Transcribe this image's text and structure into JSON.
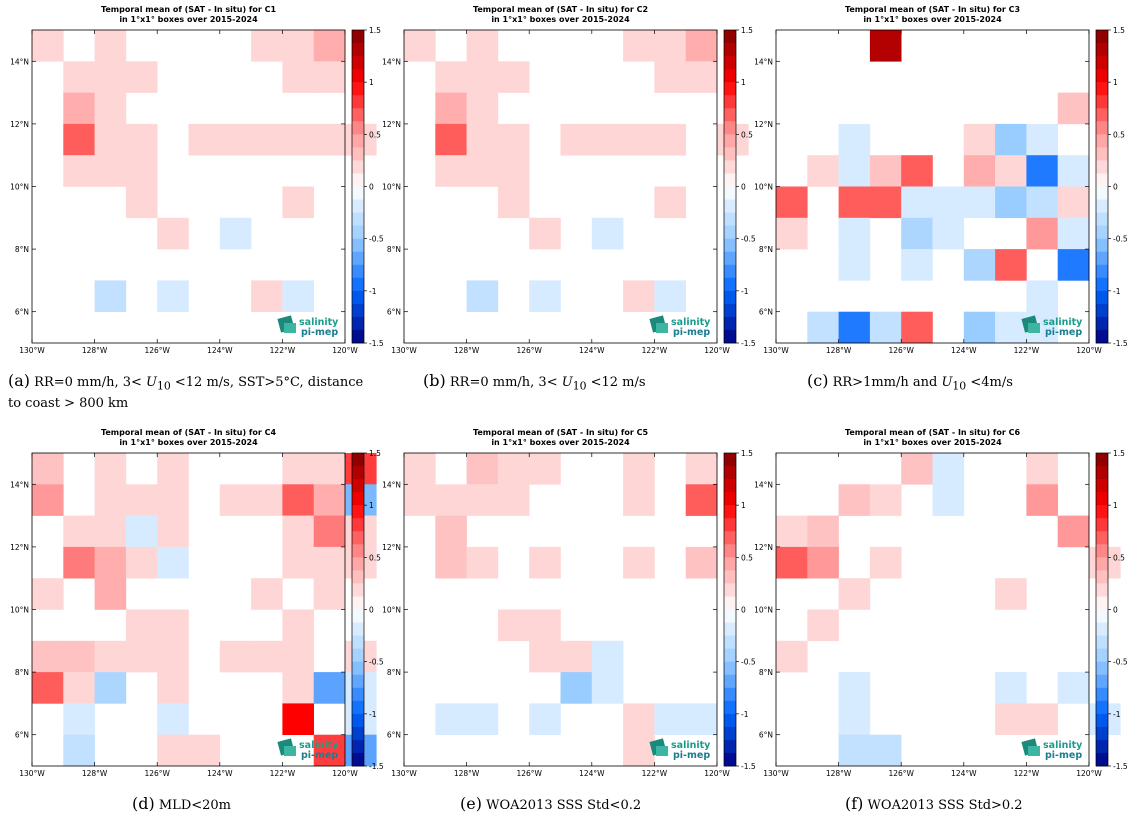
{
  "common": {
    "x_ticks": [
      "130°W",
      "128°W",
      "126°W",
      "124°W",
      "122°W",
      "120°W"
    ],
    "y_ticks": [
      "6°N",
      "8°N",
      "10°N",
      "12°N",
      "14°N"
    ],
    "cbar_ticks": [
      "1.5",
      "1",
      "0.5",
      "0",
      "-0.5",
      "-1",
      "-1.5"
    ],
    "logo_top": "salinity",
    "logo_bottom": "pi-mep"
  },
  "captions": [
    {
      "label": "(a)",
      "text": "RR=0 mm/h, 3< U10 <12 m/s, SST>5°C, distance to coast > 800 km"
    },
    {
      "label": "(b)",
      "text": "RR=0 mm/h, 3< U10 <12 m/s"
    },
    {
      "label": "(c)",
      "text": "RR>1mm/h and U10 <4m/s"
    },
    {
      "label": "(d)",
      "text": "MLD<20m"
    },
    {
      "label": "(e)",
      "text": "WOA2013 SSS Std<0.2"
    },
    {
      "label": "(f)",
      "text": "WOA2013 SSS Std>0.2"
    }
  ],
  "chart_data": [
    {
      "type": "heatmap",
      "title": "Temporal mean of (SAT - In situ) for C1",
      "subtitle": "in 1°x1° boxes over 2015-2024",
      "x_range": [
        -130,
        -120
      ],
      "y_range": [
        5,
        15
      ],
      "color_range": [
        -1.5,
        1.5
      ],
      "colormap": "blue-white-red",
      "cells": [
        [
          -130,
          14,
          0.2
        ],
        [
          -128,
          14,
          0.2
        ],
        [
          -126,
          14,
          0.0
        ],
        [
          -123,
          14,
          0.2
        ],
        [
          -122,
          14,
          0.2
        ],
        [
          -121,
          14,
          0.4
        ],
        [
          -129,
          13,
          0.2
        ],
        [
          -128,
          13,
          0.2
        ],
        [
          -127,
          13,
          0.2
        ],
        [
          -122,
          13,
          0.2
        ],
        [
          -121,
          13,
          0.2
        ],
        [
          -129,
          12,
          0.4
        ],
        [
          -128,
          12,
          0.2
        ],
        [
          -129,
          11,
          0.7
        ],
        [
          -128,
          11,
          0.2
        ],
        [
          -127,
          11,
          0.2
        ],
        [
          -125,
          11,
          0.2
        ],
        [
          -124,
          11,
          0.2
        ],
        [
          -123,
          11,
          0.2
        ],
        [
          -122,
          11,
          0.2
        ],
        [
          -121,
          11,
          0.2
        ],
        [
          -120,
          11,
          0.2
        ],
        [
          -129,
          10,
          0.2
        ],
        [
          -128,
          10,
          0.2
        ],
        [
          -127,
          10,
          0.2
        ],
        [
          -127,
          9,
          0.2
        ],
        [
          -122,
          9,
          0.2
        ],
        [
          -126,
          8,
          0.2
        ],
        [
          -124,
          8,
          -0.2
        ],
        [
          -128,
          6,
          -0.3
        ],
        [
          -126,
          6,
          -0.2
        ],
        [
          -123,
          6,
          0.2
        ],
        [
          -122,
          6,
          -0.2
        ]
      ]
    },
    {
      "type": "heatmap",
      "title": "Temporal mean of (SAT - In situ) for C2",
      "subtitle": "in 1°x1° boxes over 2015-2024",
      "x_range": [
        -130,
        -120
      ],
      "y_range": [
        5,
        15
      ],
      "color_range": [
        -1.5,
        1.5
      ],
      "colormap": "blue-white-red",
      "cells": [
        [
          -130,
          14,
          0.2
        ],
        [
          -128,
          14,
          0.2
        ],
        [
          -126,
          14,
          0.0
        ],
        [
          -123,
          14,
          0.2
        ],
        [
          -122,
          14,
          0.2
        ],
        [
          -121,
          14,
          0.4
        ],
        [
          -129,
          13,
          0.2
        ],
        [
          -128,
          13,
          0.2
        ],
        [
          -127,
          13,
          0.2
        ],
        [
          -122,
          13,
          0.2
        ],
        [
          -121,
          13,
          0.2
        ],
        [
          -129,
          12,
          0.4
        ],
        [
          -128,
          12,
          0.2
        ],
        [
          -129,
          11,
          0.7
        ],
        [
          -128,
          11,
          0.2
        ],
        [
          -127,
          11,
          0.2
        ],
        [
          -125,
          11,
          0.2
        ],
        [
          -124,
          11,
          0.2
        ],
        [
          -123,
          11,
          0.2
        ],
        [
          -122,
          11,
          0.2
        ],
        [
          -120,
          11,
          0.2
        ],
        [
          -129,
          10,
          0.2
        ],
        [
          -128,
          10,
          0.2
        ],
        [
          -127,
          10,
          0.2
        ],
        [
          -127,
          9,
          0.2
        ],
        [
          -122,
          9,
          0.2
        ],
        [
          -126,
          8,
          0.2
        ],
        [
          -124,
          8,
          -0.2
        ],
        [
          -128,
          6,
          -0.3
        ],
        [
          -126,
          6,
          -0.2
        ],
        [
          -123,
          6,
          0.2
        ],
        [
          -122,
          6,
          -0.2
        ]
      ]
    },
    {
      "type": "heatmap",
      "title": "Temporal mean of (SAT - In situ) for C3",
      "subtitle": "in 1°x1° boxes over 2015-2024",
      "x_range": [
        -130,
        -120
      ],
      "y_range": [
        5,
        15
      ],
      "color_range": [
        -1.5,
        1.5
      ],
      "colormap": "blue-white-red",
      "cells": [
        [
          -127,
          14,
          1.3
        ],
        [
          -121,
          12,
          0.3
        ],
        [
          -128,
          11,
          -0.2
        ],
        [
          -124,
          11,
          0.2
        ],
        [
          -123,
          11,
          -0.5
        ],
        [
          -122,
          11,
          -0.2
        ],
        [
          -129,
          10,
          0.2
        ],
        [
          -128,
          10,
          -0.2
        ],
        [
          -127,
          10,
          0.3
        ],
        [
          -126,
          10,
          0.7
        ],
        [
          -124,
          10,
          0.4
        ],
        [
          -123,
          10,
          0.2
        ],
        [
          -122,
          10,
          -0.9
        ],
        [
          -121,
          10,
          -0.2
        ],
        [
          -130,
          9,
          0.7
        ],
        [
          -128,
          9,
          0.7
        ],
        [
          -127,
          9,
          0.7
        ],
        [
          -126,
          9,
          -0.2
        ],
        [
          -125,
          9,
          -0.2
        ],
        [
          -124,
          9,
          -0.2
        ],
        [
          -123,
          9,
          -0.5
        ],
        [
          -122,
          9,
          -0.3
        ],
        [
          -121,
          9,
          0.2
        ],
        [
          -130,
          8,
          0.2
        ],
        [
          -128,
          8,
          -0.2
        ],
        [
          -126,
          8,
          -0.4
        ],
        [
          -125,
          8,
          -0.2
        ],
        [
          -122,
          8,
          0.5
        ],
        [
          -121,
          8,
          -0.2
        ],
        [
          -128,
          7,
          -0.2
        ],
        [
          -126,
          7,
          -0.2
        ],
        [
          -124,
          7,
          -0.4
        ],
        [
          -123,
          7,
          0.7
        ],
        [
          -121,
          7,
          -0.9
        ],
        [
          -122,
          6,
          -0.2
        ],
        [
          -129,
          5,
          -0.3
        ],
        [
          -128,
          5,
          -0.9
        ],
        [
          -127,
          5,
          -0.3
        ],
        [
          -126,
          5,
          0.7
        ],
        [
          -124,
          5,
          -0.5
        ],
        [
          -123,
          5,
          -0.2
        ],
        [
          -122,
          5,
          -0.2
        ]
      ]
    },
    {
      "type": "heatmap",
      "title": "Temporal mean of (SAT - In situ) for C4",
      "subtitle": "in 1°x1° boxes over 2015-2024",
      "x_range": [
        -130,
        -120
      ],
      "y_range": [
        5,
        15
      ],
      "color_range": [
        -1.5,
        1.5
      ],
      "colormap": "blue-white-red",
      "cells": [
        [
          -130,
          14,
          0.3
        ],
        [
          -128,
          14,
          0.2
        ],
        [
          -126,
          14,
          0.2
        ],
        [
          -122,
          14,
          0.2
        ],
        [
          -121,
          14,
          0.2
        ],
        [
          -120,
          14,
          0.8
        ],
        [
          -130,
          13,
          0.5
        ],
        [
          -128,
          13,
          0.2
        ],
        [
          -127,
          13,
          0.2
        ],
        [
          -126,
          13,
          0.2
        ],
        [
          -124,
          13,
          0.2
        ],
        [
          -123,
          13,
          0.2
        ],
        [
          -122,
          13,
          0.7
        ],
        [
          -121,
          13,
          0.4
        ],
        [
          -120,
          13,
          -0.6
        ],
        [
          -129,
          12,
          0.2
        ],
        [
          -128,
          12,
          0.2
        ],
        [
          -127,
          12,
          -0.2
        ],
        [
          -126,
          12,
          0.2
        ],
        [
          -122,
          12,
          0.2
        ],
        [
          -121,
          12,
          0.6
        ],
        [
          -120,
          12,
          0.2
        ],
        [
          -129,
          11,
          0.6
        ],
        [
          -128,
          11,
          0.4
        ],
        [
          -127,
          11,
          0.2
        ],
        [
          -126,
          11,
          -0.2
        ],
        [
          -122,
          11,
          0.2
        ],
        [
          -121,
          11,
          0.2
        ],
        [
          -120,
          11,
          0.2
        ],
        [
          -130,
          10,
          0.2
        ],
        [
          -128,
          10,
          0.4
        ],
        [
          -123,
          10,
          0.2
        ],
        [
          -121,
          10,
          0.2
        ],
        [
          -127,
          9,
          0.2
        ],
        [
          -126,
          9,
          0.2
        ],
        [
          -122,
          9,
          0.2
        ],
        [
          -130,
          8,
          0.3
        ],
        [
          -129,
          8,
          0.3
        ],
        [
          -128,
          8,
          0.2
        ],
        [
          -127,
          8,
          0.2
        ],
        [
          -126,
          8,
          0.2
        ],
        [
          -124,
          8,
          0.2
        ],
        [
          -123,
          8,
          0.2
        ],
        [
          -122,
          8,
          0.2
        ],
        [
          -120,
          8,
          0.2
        ],
        [
          -130,
          7,
          0.7
        ],
        [
          -129,
          7,
          0.2
        ],
        [
          -128,
          7,
          -0.4
        ],
        [
          -126,
          7,
          0.2
        ],
        [
          -122,
          7,
          0.2
        ],
        [
          -121,
          7,
          -0.7
        ],
        [
          -120,
          7,
          -0.2
        ],
        [
          -129,
          6,
          -0.2
        ],
        [
          -126,
          6,
          -0.2
        ],
        [
          -122,
          6,
          1.0
        ],
        [
          -120,
          6,
          -0.2
        ],
        [
          -129,
          5,
          -0.3
        ],
        [
          -126,
          5,
          0.2
        ],
        [
          -125,
          5,
          0.2
        ],
        [
          -121,
          5,
          0.8
        ],
        [
          -120,
          5,
          -0.7
        ]
      ]
    },
    {
      "type": "heatmap",
      "title": "Temporal mean of (SAT - In situ) for C5",
      "subtitle": "in 1°x1° boxes over 2015-2024",
      "x_range": [
        -130,
        -120
      ],
      "y_range": [
        5,
        15
      ],
      "color_range": [
        -1.5,
        1.5
      ],
      "colormap": "blue-white-red",
      "cells": [
        [
          -130,
          14,
          0.2
        ],
        [
          -128,
          14,
          0.3
        ],
        [
          -127,
          14,
          0.2
        ],
        [
          -126,
          14,
          0.2
        ],
        [
          -123,
          14,
          0.2
        ],
        [
          -121,
          14,
          0.2
        ],
        [
          -130,
          13,
          0.2
        ],
        [
          -129,
          13,
          0.2
        ],
        [
          -128,
          13,
          0.2
        ],
        [
          -127,
          13,
          0.2
        ],
        [
          -123,
          13,
          0.2
        ],
        [
          -121,
          13,
          0.7
        ],
        [
          -129,
          12,
          0.3
        ],
        [
          -129,
          11,
          0.3
        ],
        [
          -128,
          11,
          0.2
        ],
        [
          -126,
          11,
          0.2
        ],
        [
          -123,
          11,
          0.2
        ],
        [
          -121,
          11,
          0.3
        ],
        [
          -127,
          9,
          0.2
        ],
        [
          -126,
          9,
          0.2
        ],
        [
          -126,
          8,
          0.2
        ],
        [
          -125,
          8,
          0.2
        ],
        [
          -124,
          8,
          -0.2
        ],
        [
          -125,
          7,
          -0.5
        ],
        [
          -124,
          7,
          -0.2
        ],
        [
          -129,
          6,
          -0.2
        ],
        [
          -128,
          6,
          -0.2
        ],
        [
          -126,
          6,
          -0.2
        ],
        [
          -123,
          6,
          0.2
        ],
        [
          -122,
          6,
          -0.2
        ],
        [
          -121,
          6,
          -0.2
        ],
        [
          -123,
          5,
          0.2
        ]
      ]
    },
    {
      "type": "heatmap",
      "title": "Temporal mean of (SAT - In situ) for C6",
      "subtitle": "in 1°x1° boxes over 2015-2024",
      "x_range": [
        -130,
        -120
      ],
      "y_range": [
        5,
        15
      ],
      "color_range": [
        -1.5,
        1.5
      ],
      "colormap": "blue-white-red",
      "cells": [
        [
          -126,
          14,
          0.3
        ],
        [
          -125,
          14,
          -0.2
        ],
        [
          -122,
          14,
          0.2
        ],
        [
          -128,
          13,
          0.3
        ],
        [
          -127,
          13,
          0.2
        ],
        [
          -125,
          13,
          -0.2
        ],
        [
          -122,
          13,
          0.5
        ],
        [
          -130,
          12,
          0.2
        ],
        [
          -129,
          12,
          0.3
        ],
        [
          -121,
          12,
          0.5
        ],
        [
          -130,
          11,
          0.7
        ],
        [
          -129,
          11,
          0.5
        ],
        [
          -127,
          11,
          0.2
        ],
        [
          -120,
          11,
          0.2
        ],
        [
          -128,
          10,
          0.2
        ],
        [
          -123,
          10,
          0.2
        ],
        [
          -129,
          9,
          0.2
        ],
        [
          -130,
          8,
          0.2
        ],
        [
          -128,
          7,
          -0.2
        ],
        [
          -123,
          7,
          -0.2
        ],
        [
          -121,
          7,
          -0.2
        ],
        [
          -128,
          6,
          -0.2
        ],
        [
          -123,
          6,
          0.2
        ],
        [
          -122,
          6,
          0.2
        ],
        [
          -120,
          6,
          -0.2
        ],
        [
          -128,
          5,
          -0.3
        ],
        [
          -127,
          5,
          -0.3
        ]
      ]
    }
  ]
}
